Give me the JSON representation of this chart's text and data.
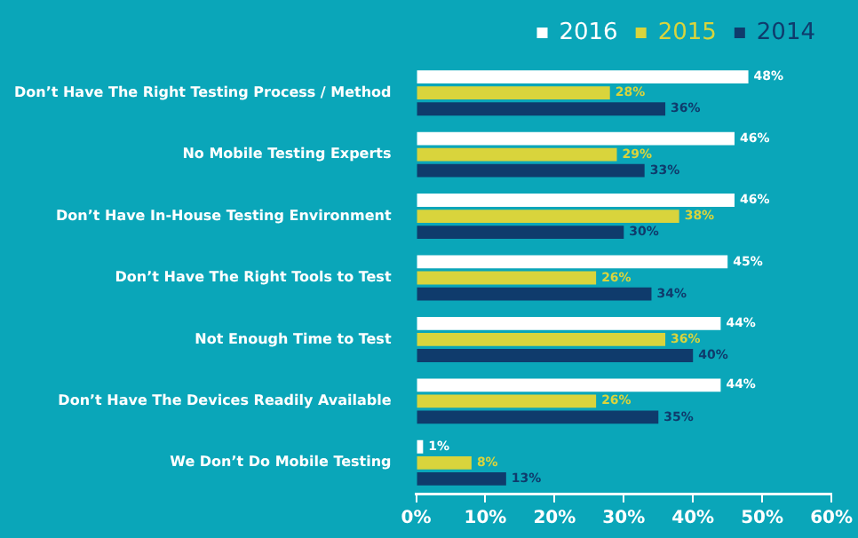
{
  "chart_data": {
    "type": "bar",
    "orientation": "horizontal",
    "categories": [
      "Don’t Have The Right Testing Process / Method",
      "No Mobile Testing Experts",
      "Don’t Have In-House Testing Environment",
      "Don’t Have The Right Tools to Test",
      "Not Enough Time to Test",
      "Don’t Have The Devices Readily Available",
      "We Don’t Do Mobile Testing"
    ],
    "series": [
      {
        "name": "2016",
        "color": "#ffffff",
        "values": [
          48,
          46,
          46,
          45,
          44,
          44,
          1
        ],
        "value_labels": [
          "48%",
          "46%",
          "46%",
          "45%",
          "44%",
          "44%",
          "1%"
        ]
      },
      {
        "name": "2015",
        "color": "#d9d43c",
        "values": [
          28,
          29,
          38,
          26,
          36,
          26,
          8
        ],
        "value_labels": [
          "28%",
          "29%",
          "38%",
          "26%",
          "36%",
          "26%",
          "8%"
        ]
      },
      {
        "name": "2014",
        "color": "#0f3b6c",
        "values": [
          36,
          33,
          30,
          34,
          40,
          35,
          13
        ],
        "value_labels": [
          "36%",
          "33%",
          "30%",
          "34%",
          "40%",
          "35%",
          "13%"
        ]
      }
    ],
    "xlim": [
      0,
      60
    ],
    "xticks": [
      {
        "value": 0,
        "label": "0%"
      },
      {
        "value": 10,
        "label": "10%"
      },
      {
        "value": 20,
        "label": "20%"
      },
      {
        "value": 30,
        "label": "30%"
      },
      {
        "value": 40,
        "label": "40%"
      },
      {
        "value": 50,
        "label": "50%"
      },
      {
        "value": 60,
        "label": "60%"
      }
    ],
    "grid": false,
    "legend": "top right"
  }
}
